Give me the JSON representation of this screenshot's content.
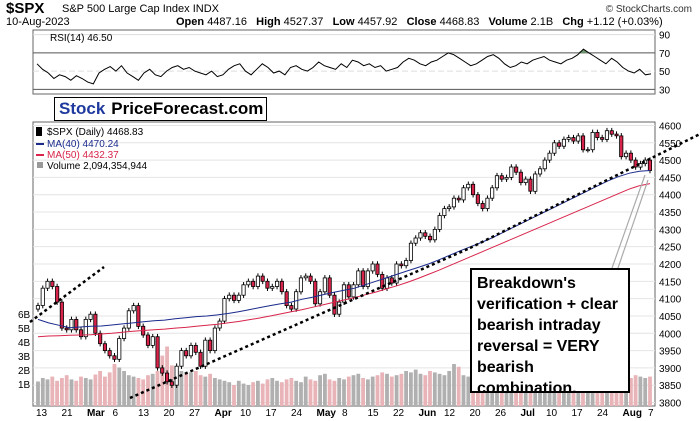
{
  "header": {
    "symbol": "$SPX",
    "name": "S&P 500 Large Cap Index",
    "exchange": "INDX",
    "date": "10-Aug-2023",
    "open_label": "Open",
    "open": "4487.16",
    "high_label": "High",
    "high": "4527.37",
    "low_label": "Low",
    "low": "4457.92",
    "close_label": "Close",
    "close": "4468.83",
    "volume_label": "Volume",
    "volume": "2.1B",
    "chg_label": "Chg",
    "chg": "+1.12 (+0.03%)",
    "brand": "© StockCharts.com"
  },
  "logo": {
    "part1": "Stock",
    "part2": "PriceForecast.com"
  },
  "annotation": "Breakdown's verification + clear bearish intraday reversal = VERY bearish combination.",
  "colors": {
    "up": "#ffffff",
    "down": "#d8244a",
    "ma40": "#1a2a8c",
    "ma50": "#d8244a",
    "volume": "#e8b4b8",
    "volume_up": "#b0b0b0",
    "rsi_fill": "#6f9a6f"
  },
  "chart_data": [
    {
      "type": "line",
      "panel": "rsi",
      "legend": "RSI(14) 46.50",
      "ylim": [
        25,
        95
      ],
      "yticks": [
        90,
        70,
        50,
        30
      ],
      "reference_lines": [
        70,
        30
      ],
      "grid": true,
      "values": [
        58,
        52,
        48,
        42,
        46,
        44,
        40,
        45,
        42,
        38,
        36,
        48,
        52,
        55,
        50,
        56,
        48,
        44,
        40,
        48,
        52,
        46,
        44,
        50,
        54,
        56,
        52,
        54,
        50,
        48,
        46,
        50,
        44,
        46,
        52,
        56,
        58,
        50,
        46,
        52,
        58,
        54,
        48,
        50,
        46,
        54,
        56,
        52,
        50,
        54,
        60,
        56,
        54,
        52,
        58,
        54,
        62,
        60,
        56,
        58,
        54,
        56,
        50,
        52,
        54,
        60,
        64,
        62,
        58,
        56,
        60,
        62,
        66,
        70,
        68,
        64,
        60,
        56,
        58,
        62,
        66,
        68,
        64,
        58,
        54,
        56,
        60,
        58,
        62,
        64,
        66,
        62,
        60,
        58,
        62,
        64,
        68,
        74,
        70,
        66,
        62,
        58,
        64,
        60,
        54,
        50,
        48,
        52,
        46,
        47
      ]
    },
    {
      "type": "candlestick",
      "panel": "price",
      "legend_title": "$SPX (Daily) 4468.83",
      "series": [
        {
          "name": "MA(40) 4470.24"
        },
        {
          "name": "MA(50) 4432.37"
        },
        {
          "name": "Volume 2,094,354,944"
        }
      ],
      "ylim": [
        3790,
        4610
      ],
      "yticks": [
        4600,
        4550,
        4500,
        4450,
        4400,
        4350,
        4300,
        4250,
        4200,
        4150,
        4100,
        4050,
        4000,
        3950,
        3900,
        3850,
        3800
      ],
      "volume_ticks": [
        "6B",
        "5B",
        "4B",
        "3B",
        "2B",
        "1B"
      ],
      "x_labels": [
        "13",
        "21",
        "Mar",
        "6",
        "13",
        "20",
        "27",
        "Apr",
        "10",
        "17",
        "24",
        "May",
        "8",
        "15",
        "22",
        "Jun",
        "12",
        "20",
        "26",
        "Jul",
        "10",
        "17",
        "24",
        "Aug",
        "7"
      ],
      "close": [
        4080,
        4130,
        4150,
        4135,
        4090,
        4015,
        4010,
        4040,
        4010,
        3990,
        4040,
        4055,
        4000,
        3970,
        3950,
        3935,
        3925,
        3985,
        4015,
        4065,
        4080,
        4020,
        3995,
        3965,
        3990,
        3900,
        3885,
        3860,
        3850,
        3905,
        3950,
        3935,
        3965,
        3945,
        3905,
        3980,
        3950,
        4015,
        4035,
        4100,
        4110,
        4095,
        4110,
        4140,
        4150,
        4135,
        4165,
        4150,
        4130,
        4135,
        4150,
        4120,
        4080,
        4070,
        4120,
        4160,
        4165,
        4150,
        4085,
        4120,
        4160,
        4110,
        4055,
        4090,
        4140,
        4105,
        4140,
        4180,
        4135,
        4180,
        4200,
        4170,
        4130,
        4160,
        4145,
        4200,
        4195,
        4210,
        4260,
        4275,
        4290,
        4280,
        4270,
        4300,
        4340,
        4360,
        4365,
        4390,
        4385,
        4420,
        4430,
        4400,
        4375,
        4360,
        4390,
        4420,
        4455,
        4445,
        4450,
        4480,
        4465,
        4435,
        4445,
        4410,
        4460,
        4475,
        4500,
        4520,
        4550,
        4540,
        4560,
        4565,
        4555,
        4570,
        4530,
        4530,
        4580,
        4565,
        4560,
        4585,
        4575,
        4570,
        4510,
        4520,
        4500,
        4480,
        4490,
        4500,
        4470
      ],
      "ma40": [
        4040,
        4030,
        4023,
        4016,
        4018,
        4020,
        4021,
        4024,
        4027,
        4030,
        4033,
        4036,
        4038,
        4042,
        4045,
        4048,
        4050,
        4053,
        4057,
        4062,
        4068,
        4074,
        4080,
        4085,
        4090,
        4098,
        4104,
        4111,
        4118,
        4124,
        4130,
        4140,
        4150,
        4160,
        4170,
        4180,
        4190,
        4200,
        4212,
        4225,
        4238,
        4250,
        4262,
        4275,
        4290,
        4305,
        4320,
        4335,
        4350,
        4365,
        4380,
        4395,
        4410,
        4425,
        4440,
        4452,
        4462,
        4468,
        4470
      ],
      "ma50": [
        3990,
        3992,
        3993,
        3994,
        3995,
        3996,
        3998,
        4000,
        4003,
        4006,
        4008,
        4010,
        4012,
        4015,
        4017,
        4020,
        4023,
        4026,
        4030,
        4034,
        4039,
        4044,
        4050,
        4056,
        4062,
        4068,
        4075,
        4082,
        4089,
        4096,
        4103,
        4111,
        4119,
        4128,
        4137,
        4147,
        4158,
        4170,
        4182,
        4195,
        4208,
        4221,
        4234,
        4247,
        4260,
        4273,
        4286,
        4299,
        4312,
        4325,
        4338,
        4351,
        4364,
        4377,
        4390,
        4403,
        4416,
        4426,
        4432
      ],
      "volume": [
        0.35,
        0.4,
        0.38,
        0.42,
        0.36,
        0.4,
        0.44,
        0.38,
        0.36,
        0.42,
        0.4,
        0.38,
        0.45,
        0.5,
        0.42,
        0.48,
        0.6,
        0.55,
        0.5,
        0.44,
        0.42,
        0.4,
        0.38,
        0.44,
        0.46,
        0.5,
        0.72,
        0.85,
        0.58,
        0.52,
        0.5,
        0.46,
        0.48,
        0.5,
        0.44,
        0.42,
        0.46,
        0.4,
        0.38,
        0.36,
        0.34,
        0.3,
        0.36,
        0.32,
        0.3,
        0.34,
        0.36,
        0.32,
        0.38,
        0.4,
        0.36,
        0.34,
        0.38,
        0.4,
        0.36,
        0.34,
        0.42,
        0.38,
        0.36,
        0.44,
        0.46,
        0.38,
        0.36,
        0.4,
        0.38,
        0.42,
        0.44,
        0.46,
        0.4,
        0.38,
        0.42,
        0.44,
        0.48,
        0.46,
        0.42,
        0.44,
        0.46,
        0.5,
        0.48,
        0.52,
        0.46,
        0.44,
        0.5,
        0.48,
        0.46,
        0.44,
        0.5,
        0.6,
        0.56,
        0.44,
        0.42,
        0.4,
        0.42,
        0.46,
        0.48,
        0.44,
        0.42,
        0.46,
        0.4,
        0.38,
        0.42,
        0.44,
        0.4,
        0.38,
        0.4,
        0.42,
        0.44,
        0.4,
        0.38,
        0.36,
        0.4,
        0.42,
        0.44,
        0.4,
        0.38,
        0.42,
        0.4,
        0.44,
        0.46,
        0.42,
        0.4,
        0.44,
        0.46,
        0.42,
        0.4,
        0.44,
        0.42,
        0.4,
        0.42
      ]
    }
  ]
}
